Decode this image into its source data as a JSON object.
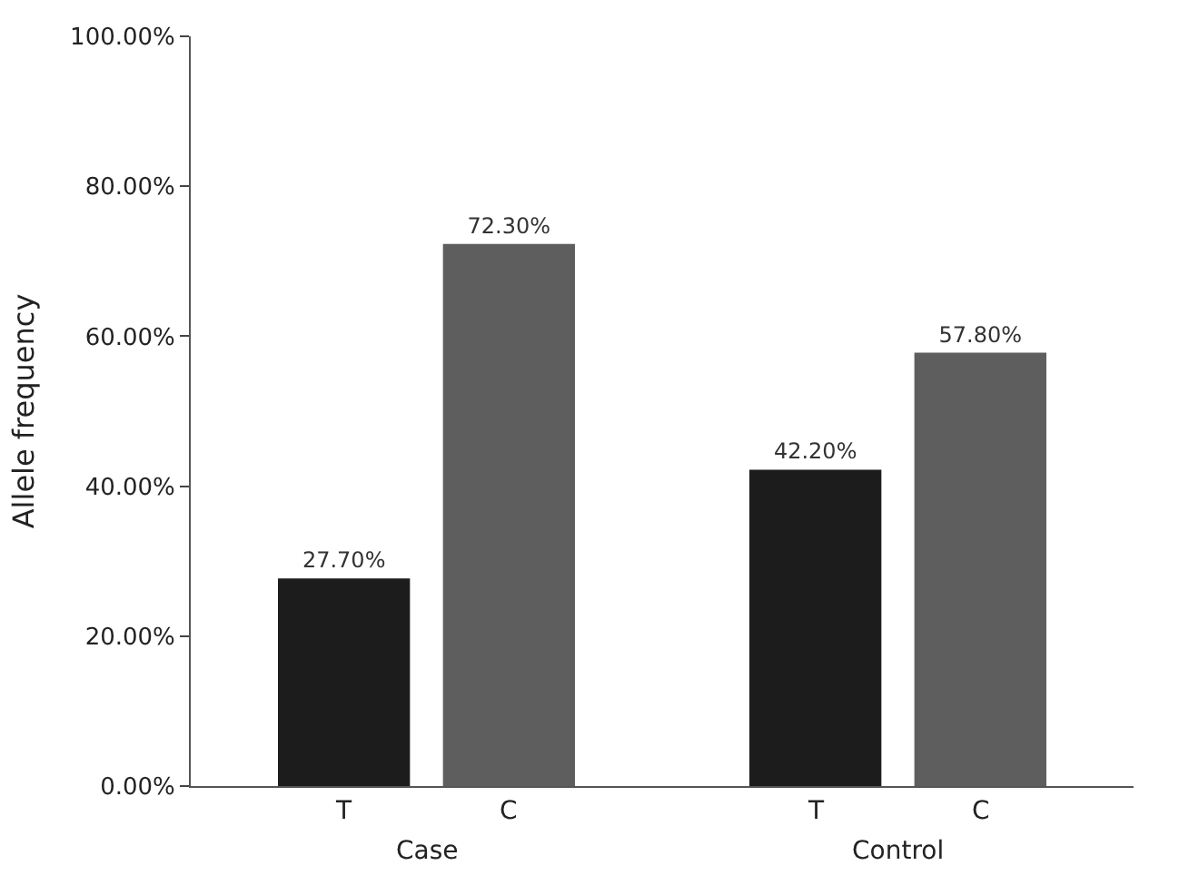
{
  "chart_data": {
    "type": "bar",
    "ylabel": "Allele frequency",
    "categories": [
      "Case",
      "Control"
    ],
    "series": [
      {
        "name": "T",
        "color": "#1c1c1c",
        "values": [
          27.7,
          42.2
        ],
        "value_labels": [
          "27.70%",
          "42.20%"
        ]
      },
      {
        "name": "C",
        "color": "#5e5e5e",
        "values": [
          72.3,
          57.8
        ],
        "value_labels": [
          "72.30%",
          "57.80%"
        ]
      }
    ],
    "ylim": [
      0,
      100
    ],
    "yticks": [
      {
        "value": 0,
        "label": "0.00%"
      },
      {
        "value": 20,
        "label": "20.00%"
      },
      {
        "value": 40,
        "label": "40.00%"
      },
      {
        "value": 60,
        "label": "60.00%"
      },
      {
        "value": 80,
        "label": "80.00%"
      },
      {
        "value": 100,
        "label": "100.00%"
      }
    ]
  }
}
